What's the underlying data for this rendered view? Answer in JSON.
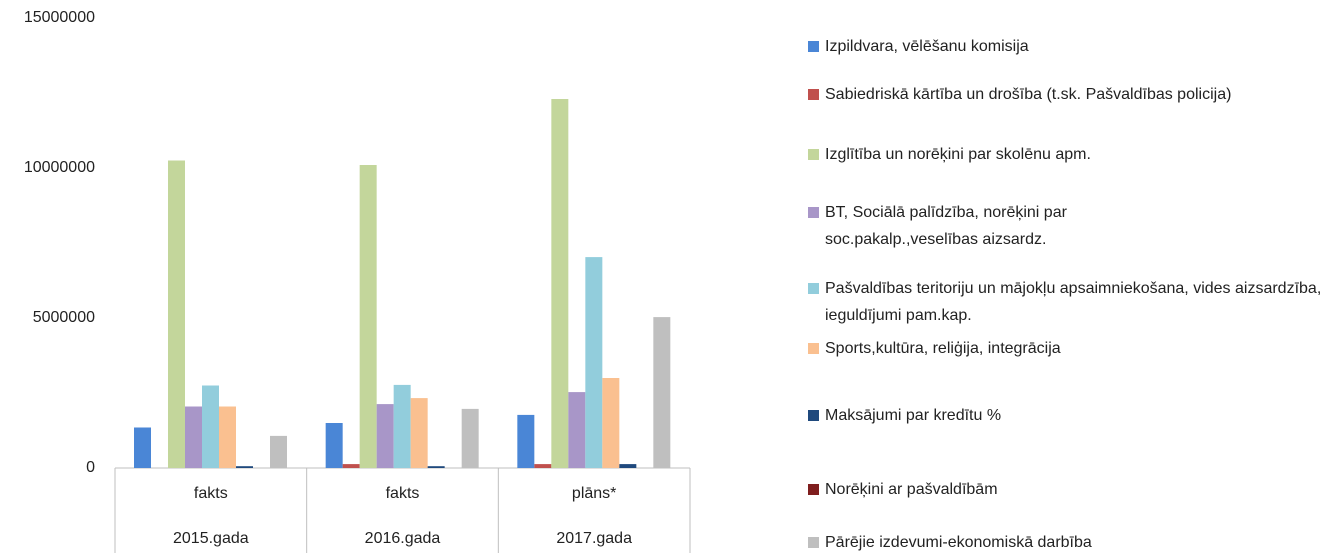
{
  "chart_data": {
    "type": "bar",
    "categories": [
      "fakts",
      "fakts",
      "plāns*"
    ],
    "category_groups": [
      "2015.gada",
      "2016.gada",
      "2017.gada"
    ],
    "ylim": [
      0,
      15000000
    ],
    "yticks": [
      0,
      5000000,
      10000000,
      15000000
    ],
    "series": [
      {
        "name": "Izpildvara,  vēlēšanu komisija",
        "color": "#4a86d6",
        "values": [
          1350000,
          1500000,
          1770000
        ]
      },
      {
        "name": "Sabiedriskā kārtība un drošība (t.sk. Pašvaldības policija)",
        "color": "#c0504d",
        "values": [
          0,
          130000,
          130000
        ]
      },
      {
        "name": "Izglītība un norēķini par skolēnu apm.",
        "color": "#c3d69b",
        "values": [
          10250000,
          10100000,
          12300000
        ]
      },
      {
        "name": "BT, Sociālā palīdzība, norēķini par soc.pakalp.,veselības aizsardz.",
        "color": "#a896c8",
        "values": [
          2050000,
          2130000,
          2530000
        ]
      },
      {
        "name": "Pašvaldības teritoriju un mājokļu apsaimniekošana, vides aizsardzība, ieguldījumi pam.kap.",
        "color": "#92cddc",
        "values": [
          2750000,
          2770000,
          7030000
        ]
      },
      {
        "name": "Sports,kultūra, reliģija, integrācija",
        "color": "#fac090",
        "values": [
          2050000,
          2330000,
          3000000
        ]
      },
      {
        "name": "Maksājumi par kredītu %",
        "color": "#1f497d",
        "values": [
          60000,
          60000,
          130000
        ]
      },
      {
        "name": "Norēķini ar pašvaldībām",
        "color": "#7f1e1e",
        "values": [
          0,
          0,
          0
        ]
      },
      {
        "name": "Pārējie izdevumi-ekonomiskā darbība",
        "color": "#bfbfbf",
        "values": [
          1070000,
          1970000,
          5030000
        ]
      }
    ]
  }
}
